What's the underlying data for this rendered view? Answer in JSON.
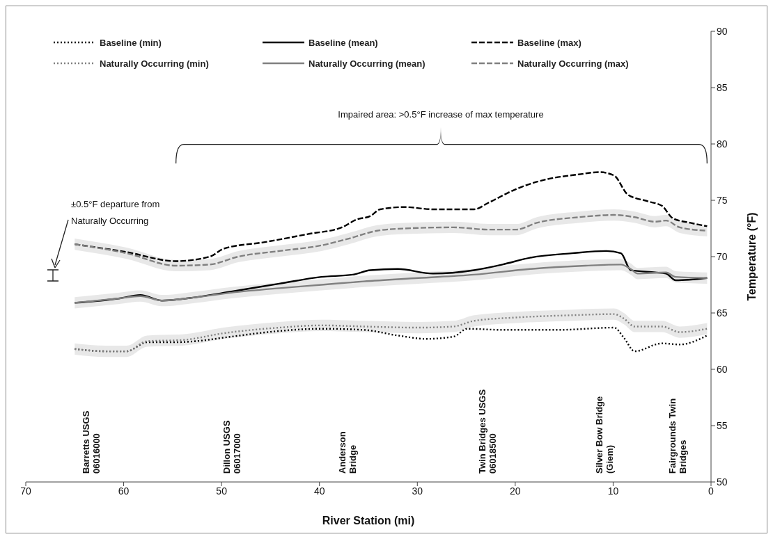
{
  "chart_data": {
    "type": "line",
    "xlabel": "River Station (mi)",
    "ylabel": "Temperature (°F)",
    "xlim": [
      70,
      0
    ],
    "xticks": [
      70,
      60,
      50,
      40,
      30,
      20,
      10,
      0
    ],
    "ylim": [
      50,
      90
    ],
    "yticks": [
      50,
      55,
      60,
      65,
      70,
      75,
      80,
      85,
      90
    ],
    "legend": "top",
    "marker": "none",
    "series": [
      {
        "name": "Baseline (min)",
        "color": "#000000",
        "line_style": "dotted",
        "x": [
          65.0,
          61.8,
          59.7,
          57.6,
          54.7,
          52.6,
          49.0,
          44.1,
          39.8,
          35.5,
          32.0,
          29.1,
          26.3,
          24.9,
          21.3,
          15.6,
          9.9,
          8.9,
          7.8,
          5.0,
          3.2,
          0.4
        ],
        "values": [
          61.8,
          61.6,
          61.6,
          62.4,
          62.4,
          62.5,
          62.9,
          63.4,
          63.6,
          63.5,
          63.0,
          62.7,
          62.9,
          63.6,
          63.5,
          63.5,
          63.7,
          62.8,
          61.6,
          62.3,
          62.2,
          63.0
        ]
      },
      {
        "name": "Baseline (mean)",
        "color": "#000000",
        "line_style": "solid",
        "x": [
          65.0,
          60.4,
          58.3,
          56.1,
          52.6,
          49.0,
          44.1,
          39.8,
          36.6,
          34.8,
          32.0,
          28.4,
          24.2,
          21.3,
          18.5,
          14.2,
          10.7,
          9.2,
          8.2,
          5.7,
          4.6,
          3.6,
          0.4
        ],
        "values": [
          65.9,
          66.3,
          66.6,
          66.1,
          66.4,
          66.9,
          67.6,
          68.2,
          68.4,
          68.8,
          68.9,
          68.5,
          68.8,
          69.3,
          69.9,
          70.3,
          70.5,
          70.3,
          68.8,
          68.6,
          68.5,
          67.9,
          68.1
        ]
      },
      {
        "name": "Baseline (max)",
        "color": "#000000",
        "line_style": "dashed",
        "x": [
          65.0,
          59.7,
          54.7,
          51.2,
          49.8,
          45.5,
          41.2,
          37.7,
          36.2,
          34.8,
          33.8,
          31.3,
          28.4,
          24.2,
          22.7,
          19.9,
          17.1,
          13.5,
          11.4,
          9.9,
          8.5,
          6.4,
          5.0,
          3.9,
          2.1,
          0.4
        ],
        "values": [
          71.1,
          70.4,
          69.6,
          70.0,
          70.7,
          71.3,
          72.0,
          72.6,
          73.3,
          73.6,
          74.2,
          74.4,
          74.2,
          74.2,
          74.8,
          76.0,
          76.8,
          77.3,
          77.5,
          77.2,
          75.5,
          74.9,
          74.5,
          73.4,
          73.0,
          72.7
        ]
      },
      {
        "name": "Naturally Occurring (min)",
        "color": "#808080",
        "line_style": "dotted",
        "x": [
          65.0,
          61.8,
          59.7,
          57.6,
          54.0,
          49.8,
          44.1,
          39.8,
          35.5,
          29.9,
          26.3,
          24.2,
          19.9,
          14.2,
          9.9,
          8.9,
          7.8,
          5.0,
          3.2,
          0.4
        ],
        "values": [
          61.8,
          61.6,
          61.6,
          62.5,
          62.6,
          63.2,
          63.7,
          63.9,
          63.8,
          63.7,
          63.8,
          64.3,
          64.6,
          64.8,
          64.9,
          64.5,
          63.8,
          63.8,
          63.3,
          63.6
        ],
        "lower": [
          61.3,
          61.1,
          61.1,
          62.0,
          62.1,
          62.7,
          63.2,
          63.4,
          63.3,
          63.2,
          63.3,
          63.8,
          64.1,
          64.3,
          64.4,
          64.0,
          63.3,
          63.3,
          62.8,
          63.1
        ],
        "upper": [
          62.3,
          62.1,
          62.1,
          63.0,
          63.1,
          63.7,
          64.2,
          64.4,
          64.3,
          64.2,
          64.3,
          64.8,
          65.1,
          65.3,
          65.4,
          65.0,
          64.3,
          64.3,
          63.8,
          64.1
        ]
      },
      {
        "name": "Naturally Occurring (mean)",
        "color": "#808080",
        "line_style": "solid",
        "x": [
          65.0,
          60.4,
          58.3,
          56.1,
          52.6,
          49.0,
          44.1,
          39.8,
          35.5,
          29.9,
          24.2,
          18.5,
          12.8,
          9.2,
          8.2,
          7.5,
          4.6,
          3.6,
          0.4
        ],
        "values": [
          65.9,
          66.3,
          66.5,
          66.1,
          66.4,
          66.8,
          67.2,
          67.5,
          67.8,
          68.1,
          68.4,
          68.9,
          69.2,
          69.3,
          68.9,
          68.5,
          68.6,
          68.2,
          68.1
        ],
        "lower": [
          65.4,
          65.8,
          66.0,
          65.6,
          65.9,
          66.3,
          66.7,
          67.0,
          67.3,
          67.6,
          67.9,
          68.4,
          68.7,
          68.8,
          68.4,
          68.0,
          68.1,
          67.7,
          67.6
        ],
        "upper": [
          66.4,
          66.8,
          67.0,
          66.6,
          66.9,
          67.3,
          67.7,
          68.0,
          68.3,
          68.6,
          68.9,
          69.4,
          69.7,
          69.8,
          69.4,
          69.0,
          69.1,
          68.7,
          68.6
        ]
      },
      {
        "name": "Naturally Occurring (max)",
        "color": "#808080",
        "line_style": "dashed",
        "x": [
          65.0,
          59.7,
          54.7,
          51.2,
          48.3,
          44.1,
          39.8,
          37.0,
          34.1,
          31.3,
          26.3,
          22.7,
          19.9,
          17.8,
          13.5,
          9.9,
          7.8,
          5.7,
          4.6,
          3.2,
          0.4
        ],
        "values": [
          71.1,
          70.3,
          69.2,
          69.3,
          70.0,
          70.5,
          71.0,
          71.6,
          72.3,
          72.5,
          72.6,
          72.4,
          72.4,
          73.0,
          73.5,
          73.7,
          73.5,
          73.1,
          73.2,
          72.6,
          72.3
        ],
        "lower": [
          70.6,
          69.8,
          68.7,
          68.8,
          69.5,
          70.0,
          70.5,
          71.1,
          71.8,
          72.0,
          72.1,
          71.9,
          71.9,
          72.5,
          73.0,
          73.2,
          73.0,
          72.6,
          72.7,
          72.1,
          71.8
        ],
        "upper": [
          71.6,
          70.8,
          69.7,
          69.8,
          70.5,
          71.0,
          71.5,
          72.1,
          72.8,
          73.0,
          73.1,
          72.9,
          72.9,
          73.5,
          74.0,
          74.2,
          74.0,
          73.6,
          73.7,
          73.1,
          72.8
        ]
      }
    ],
    "annotations": [
      "Impaired area: >0.5°F increase of max temperature",
      "±0.5°F departure from\nNaturally Occurring",
      "Barretts USGS\n06016000",
      "Dillon USGS\n06017000",
      "Anderson\nBridge",
      "Twin Bridges USGS\n06018500",
      "Silver Bow Bridge\n(Giem)",
      "Fairgrounds Twin\nBridges"
    ]
  }
}
